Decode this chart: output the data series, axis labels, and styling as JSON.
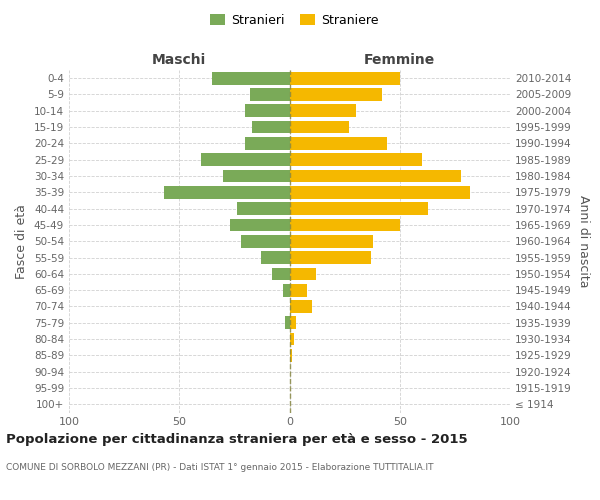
{
  "age_groups": [
    "100+",
    "95-99",
    "90-94",
    "85-89",
    "80-84",
    "75-79",
    "70-74",
    "65-69",
    "60-64",
    "55-59",
    "50-54",
    "45-49",
    "40-44",
    "35-39",
    "30-34",
    "25-29",
    "20-24",
    "15-19",
    "10-14",
    "5-9",
    "0-4"
  ],
  "birth_years": [
    "≤ 1914",
    "1915-1919",
    "1920-1924",
    "1925-1929",
    "1930-1934",
    "1935-1939",
    "1940-1944",
    "1945-1949",
    "1950-1954",
    "1955-1959",
    "1960-1964",
    "1965-1969",
    "1970-1974",
    "1975-1979",
    "1980-1984",
    "1985-1989",
    "1990-1994",
    "1995-1999",
    "2000-2004",
    "2005-2009",
    "2010-2014"
  ],
  "males": [
    0,
    0,
    0,
    0,
    0,
    2,
    0,
    3,
    8,
    13,
    22,
    27,
    24,
    57,
    30,
    40,
    20,
    17,
    20,
    18,
    35
  ],
  "females": [
    0,
    0,
    0,
    1,
    2,
    3,
    10,
    8,
    12,
    37,
    38,
    50,
    63,
    82,
    78,
    60,
    44,
    27,
    30,
    42,
    50
  ],
  "male_color": "#7aaa58",
  "female_color": "#f5b800",
  "background_color": "#ffffff",
  "grid_color": "#cccccc",
  "title": "Popolazione per cittadinanza straniera per età e sesso - 2015",
  "subtitle": "COMUNE DI SORBOLO MEZZANI (PR) - Dati ISTAT 1° gennaio 2015 - Elaborazione TUTTITALIA.IT",
  "ylabel_left": "Fasce di età",
  "ylabel_right": "Anni di nascita",
  "legend_male": "Stranieri",
  "legend_female": "Straniere",
  "header_male": "Maschi",
  "header_female": "Femmine",
  "xlim": [
    -100,
    100
  ],
  "xticks": [
    -100,
    -50,
    0,
    50,
    100
  ]
}
